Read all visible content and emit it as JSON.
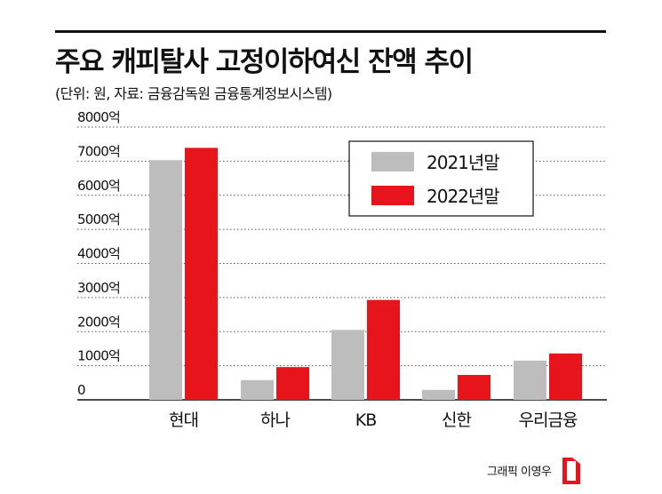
{
  "title": "주요 캐피탈사 고정이하여신 잔액 추이",
  "subtitle": "(단위: 원, 자료: 금융감독원 금융통계정보시스템)",
  "credit": "그래픽 이영우",
  "chart_data": {
    "type": "bar",
    "title": "주요 캐피탈사 고정이하여신 잔액 추이",
    "categories": [
      "현대",
      "하나",
      "KB",
      "신한",
      "우리금융"
    ],
    "series": [
      {
        "name": "2021년말",
        "color": "#bdbdbd",
        "values": [
          7030,
          580,
          2050,
          290,
          1150
        ]
      },
      {
        "name": "2022년말",
        "color": "#e8141b",
        "values": [
          7390,
          960,
          2930,
          730,
          1360
        ]
      }
    ],
    "ylim": [
      0,
      8000
    ],
    "yticks": [
      0,
      1000,
      2000,
      3000,
      4000,
      5000,
      6000,
      7000,
      8000
    ],
    "ytick_labels": [
      "0",
      "1000억",
      "2000억",
      "3000억",
      "4000억",
      "5000억",
      "6000억",
      "7000억",
      "8000억"
    ],
    "grid": true,
    "legend_position": "top-right"
  }
}
